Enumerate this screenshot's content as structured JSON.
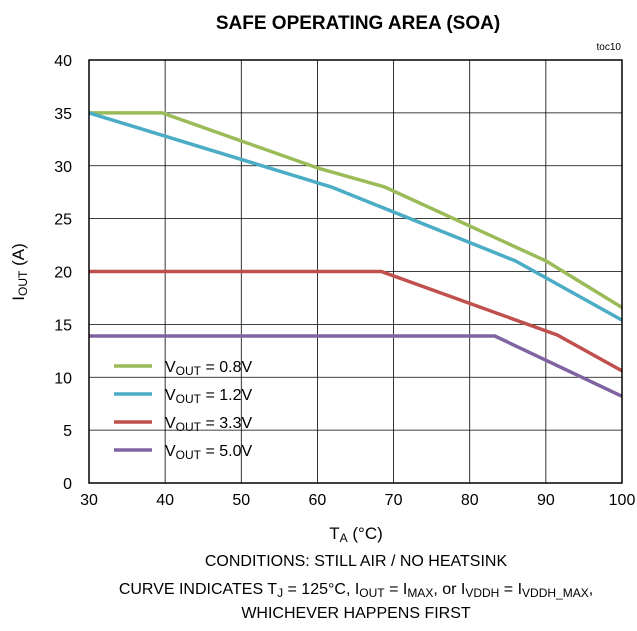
{
  "chart_data": {
    "type": "line",
    "title": "SAFE OPERATING AREA (SOA)",
    "tag": "toc10",
    "xlabel": {
      "main": "T",
      "sub": "A",
      "rest": " (°C)"
    },
    "ylabel": {
      "main": "I",
      "sub": "OUT",
      "rest": " (A)"
    },
    "xlim": [
      30,
      100
    ],
    "ylim": [
      0,
      40
    ],
    "xticks": [
      30,
      40,
      50,
      60,
      70,
      80,
      90,
      100
    ],
    "yticks": [
      0,
      5,
      10,
      15,
      20,
      25,
      30,
      35,
      40
    ],
    "grid": true,
    "legend_position": "bottom-left",
    "series": [
      {
        "name": {
          "main": "V",
          "sub": "OUT",
          "rest": " = 0.8V"
        },
        "color": "#9bbb59",
        "points": [
          [
            30,
            35
          ],
          [
            39.6,
            35
          ],
          [
            60,
            29.8
          ],
          [
            68.8,
            28
          ],
          [
            90,
            21
          ],
          [
            100,
            16.6
          ]
        ]
      },
      {
        "name": {
          "main": "V",
          "sub": "OUT",
          "rest": " = 1.2V"
        },
        "color": "#4bacc6",
        "points": [
          [
            30,
            35
          ],
          [
            61.8,
            28
          ],
          [
            86,
            21
          ],
          [
            100,
            15.4
          ]
        ]
      },
      {
        "name": {
          "main": "V",
          "sub": "OUT",
          "rest": " = 3.3V"
        },
        "color": "#c0504d",
        "points": [
          [
            30,
            20
          ],
          [
            68.4,
            20
          ],
          [
            91.5,
            14
          ],
          [
            100,
            10.6
          ]
        ]
      },
      {
        "name": {
          "main": "V",
          "sub": "OUT",
          "rest": " = 5.0V"
        },
        "color": "#8064a2",
        "points": [
          [
            30,
            13.9
          ],
          [
            83.3,
            13.9
          ],
          [
            100,
            8.2
          ]
        ]
      }
    ],
    "conditions": "CONDITIONS:  STILL AIR / NO HEATSINK",
    "curve_note": [
      {
        "t": "CURVE INDICATES  T"
      },
      {
        "s": "J"
      },
      {
        "t": " = 125°C,  I"
      },
      {
        "s": "OUT"
      },
      {
        "t": " = I"
      },
      {
        "s": "MAX"
      },
      {
        "t": ",  or I"
      },
      {
        "s": "VDDH"
      },
      {
        "t": " = I"
      },
      {
        "s": "VDDH_MAX"
      },
      {
        "t": ","
      }
    ],
    "curve_note_line2": "WHICHEVER HAPPENS FIRST"
  }
}
